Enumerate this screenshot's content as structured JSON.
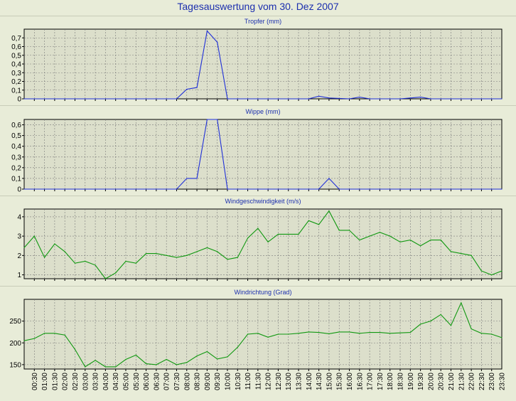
{
  "title": "Tagesauswertung vom 30. Dez 2007",
  "colors": {
    "background": "#e8ecd8",
    "plot_background": "#dcdfcb",
    "grid": "#7a7a7a",
    "title": "#1c2fae",
    "rain_line": "#2030d8",
    "wind_line": "#109810"
  },
  "chart_data": [
    {
      "type": "line",
      "title": "Tropfer (mm)",
      "ylim": [
        0,
        0.8
      ],
      "yticks": [
        0,
        0.1,
        0.2,
        0.3,
        0.4,
        0.5,
        0.6,
        0.7
      ],
      "ytick_labels": [
        "0",
        "0,1",
        "0,2",
        "0,3",
        "0,4",
        "0,5",
        "0,6",
        "0,7"
      ],
      "grid": true,
      "x": [
        0.0,
        7.5,
        8.0,
        8.5,
        9.0,
        9.5,
        10.0,
        14.0,
        14.5,
        15.0,
        16.0,
        16.5,
        17.0,
        18.5,
        19.0,
        19.5,
        20.0,
        23.5
      ],
      "values": [
        0,
        0,
        0.11,
        0.13,
        0.78,
        0.65,
        0,
        0,
        0.03,
        0.01,
        0,
        0.02,
        0,
        0,
        0.01,
        0.02,
        0,
        0
      ]
    },
    {
      "type": "line",
      "title": "Wippe (mm)",
      "ylim": [
        0,
        0.65
      ],
      "yticks": [
        0,
        0.1,
        0.2,
        0.3,
        0.4,
        0.5,
        0.6
      ],
      "ytick_labels": [
        "0",
        "0,1",
        "0,2",
        "0,3",
        "0,4",
        "0,5",
        "0,6"
      ],
      "grid": true,
      "x": [
        0.0,
        7.5,
        8.0,
        8.5,
        9.0,
        9.5,
        10.0,
        14.5,
        15.0,
        15.5,
        23.5
      ],
      "values": [
        0,
        0,
        0.1,
        0.1,
        0.65,
        0.65,
        0,
        0,
        0.1,
        0,
        0
      ]
    },
    {
      "type": "line",
      "title": "Windgeschwindigkeit (m/s)",
      "ylim": [
        0.8,
        4.4
      ],
      "yticks": [
        1,
        2,
        3,
        4
      ],
      "ytick_labels": [
        "1",
        "2",
        "3",
        "4"
      ],
      "grid": true,
      "x": [
        0.0,
        0.5,
        1.0,
        1.5,
        2.0,
        2.5,
        3.0,
        3.5,
        4.0,
        4.5,
        5.0,
        5.5,
        6.0,
        6.5,
        7.0,
        7.5,
        8.0,
        8.5,
        9.0,
        9.5,
        10.0,
        10.5,
        11.0,
        11.5,
        12.0,
        12.5,
        13.0,
        13.5,
        14.0,
        14.5,
        15.0,
        15.5,
        16.0,
        16.5,
        17.0,
        17.5,
        18.0,
        18.5,
        19.0,
        19.5,
        20.0,
        20.5,
        21.0,
        21.5,
        22.0,
        22.5,
        23.0,
        23.5
      ],
      "values": [
        2.4,
        3.0,
        1.9,
        2.6,
        2.2,
        1.6,
        1.7,
        1.5,
        0.8,
        1.1,
        1.7,
        1.6,
        2.1,
        2.1,
        2.0,
        1.9,
        2.0,
        2.2,
        2.4,
        2.2,
        1.8,
        1.9,
        2.9,
        3.4,
        2.7,
        3.1,
        3.1,
        3.1,
        3.8,
        3.6,
        4.3,
        3.3,
        3.3,
        2.8,
        3.0,
        3.2,
        3.0,
        2.7,
        2.8,
        2.5,
        2.8,
        2.8,
        2.2,
        2.1,
        2.0,
        1.2,
        1.0,
        1.2
      ]
    },
    {
      "type": "line",
      "title": "Windrichtung (Grad)",
      "ylim": [
        140,
        300
      ],
      "yticks": [
        150,
        200,
        250
      ],
      "ytick_labels": [
        "150",
        "200",
        "250"
      ],
      "grid": true,
      "x": [
        0.0,
        0.5,
        1.0,
        1.5,
        2.0,
        2.5,
        3.0,
        3.5,
        4.0,
        4.5,
        5.0,
        5.5,
        6.0,
        6.5,
        7.0,
        7.5,
        8.0,
        8.5,
        9.0,
        9.5,
        10.0,
        10.5,
        11.0,
        11.5,
        12.0,
        12.5,
        13.0,
        13.5,
        14.0,
        14.5,
        15.0,
        15.5,
        16.0,
        16.5,
        17.0,
        17.5,
        18.0,
        18.5,
        19.0,
        19.5,
        20.0,
        20.5,
        21.0,
        21.5,
        22.0,
        22.5,
        23.0,
        23.5
      ],
      "values": [
        205,
        210,
        222,
        222,
        218,
        185,
        145,
        160,
        145,
        145,
        162,
        172,
        152,
        150,
        162,
        150,
        155,
        170,
        180,
        163,
        168,
        190,
        220,
        222,
        213,
        220,
        220,
        222,
        225,
        224,
        221,
        225,
        225,
        222,
        224,
        224,
        222,
        223,
        224,
        243,
        250,
        265,
        240,
        292,
        232,
        222,
        220,
        212
      ]
    }
  ],
  "x_axis": {
    "labels": [
      "00:30",
      "01:00",
      "01:30",
      "02:00",
      "02:30",
      "03:00",
      "03:30",
      "04:00",
      "04:30",
      "05:00",
      "05:30",
      "06:00",
      "06:30",
      "07:00",
      "07:30",
      "08:00",
      "08:30",
      "09:00",
      "09:30",
      "10:00",
      "10:30",
      "11:00",
      "11:30",
      "12:00",
      "12:30",
      "13:00",
      "13:30",
      "14:00",
      "14:30",
      "15:00",
      "15:30",
      "16:00",
      "16:30",
      "17:00",
      "17:30",
      "18:00",
      "18:30",
      "19:00",
      "19:30",
      "20:00",
      "20:30",
      "21:00",
      "21:30",
      "22:00",
      "22:30",
      "23:00",
      "23:30"
    ]
  }
}
